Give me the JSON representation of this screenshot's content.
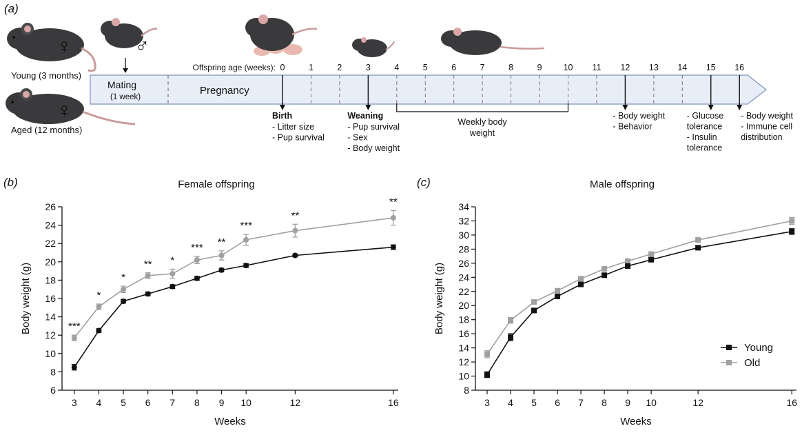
{
  "panel_a": {
    "label": "(a)",
    "young_label": "Young (3 months)",
    "aged_label": "Aged (12 months)",
    "female_symbol": "♀",
    "male_symbol": "♂",
    "age_axis_label": "Offspring age (weeks):",
    "mating_label": "Mating",
    "mating_sub": "(1 week)",
    "pregnancy_label": "Pregnancy",
    "week_ticks": [
      "0",
      "1",
      "2",
      "3",
      "4",
      "5",
      "6",
      "7",
      "8",
      "9",
      "10",
      "11",
      "12",
      "13",
      "14",
      "15",
      "16"
    ],
    "weekly_weight_label": [
      "Weekly body",
      "weight"
    ],
    "events": [
      {
        "week": "0",
        "title": "Birth",
        "items": [
          "- Litter size",
          "- Pup survival"
        ]
      },
      {
        "week": "3",
        "title": "Weaning",
        "items": [
          "- Pup survival",
          "- Sex",
          "- Body weight"
        ]
      },
      {
        "week": "12",
        "title": "",
        "items": [
          "- Body weight",
          "- Behavior"
        ]
      },
      {
        "week": "15",
        "title": "",
        "items": [
          "- Glucose",
          "  tolerance",
          "- Insulin",
          "  tolerance"
        ]
      },
      {
        "week": "16",
        "title": "",
        "items": [
          "- Body weight",
          "- Immune cell",
          "  distribution"
        ]
      }
    ],
    "colors": {
      "timeline_fill": "#e8eef8",
      "timeline_stroke": "#7f93b8",
      "female": "#e8525a",
      "male": "#1f6f8f",
      "mouse": "#3a3a3c"
    }
  },
  "chart_data": [
    {
      "panel_label": "(b)",
      "type": "line",
      "title": "Female offspring",
      "xlabel": "Weeks",
      "ylabel": "Body weight (g)",
      "ylim": [
        6,
        26
      ],
      "yticks": [
        6,
        8,
        10,
        12,
        14,
        16,
        18,
        20,
        22,
        24,
        26
      ],
      "xticks": [
        3,
        4,
        5,
        6,
        7,
        8,
        9,
        10,
        12,
        16
      ],
      "xlim": [
        2.5,
        16.2
      ],
      "series": [
        {
          "name": "Young",
          "color": "#111111",
          "marker": "circle",
          "x": [
            3,
            4,
            5,
            6,
            7,
            8,
            9,
            10,
            12,
            16
          ],
          "y": [
            8.5,
            12.5,
            15.7,
            16.5,
            17.3,
            18.2,
            19.1,
            19.6,
            20.7,
            21.6
          ],
          "err": [
            0.3,
            0.2,
            0.2,
            0.2,
            0.2,
            0.2,
            0.2,
            0.2,
            0.15,
            0.25
          ]
        },
        {
          "name": "Old",
          "color": "#a0a0a0",
          "marker": "circle",
          "x": [
            3,
            4,
            5,
            6,
            7,
            8,
            9,
            10,
            12,
            16
          ],
          "y": [
            11.7,
            15.1,
            17.0,
            18.5,
            18.7,
            20.2,
            20.7,
            22.4,
            23.4,
            24.8
          ],
          "err": [
            0.3,
            0.3,
            0.35,
            0.3,
            0.5,
            0.4,
            0.5,
            0.6,
            0.7,
            0.8
          ]
        }
      ],
      "annotations": [
        {
          "x": 3,
          "text": "***"
        },
        {
          "x": 4,
          "text": "*"
        },
        {
          "x": 5,
          "text": "*"
        },
        {
          "x": 6,
          "text": "**"
        },
        {
          "x": 7,
          "text": "*"
        },
        {
          "x": 8,
          "text": "***"
        },
        {
          "x": 9,
          "text": "**"
        },
        {
          "x": 10,
          "text": "***"
        },
        {
          "x": 12,
          "text": "**"
        },
        {
          "x": 16,
          "text": "**"
        }
      ]
    },
    {
      "panel_label": "(c)",
      "type": "line",
      "title": "Male offspring",
      "xlabel": "Weeks",
      "ylabel": "Body weight (g)",
      "ylim": [
        8,
        34
      ],
      "yticks": [
        8,
        10,
        12,
        14,
        16,
        18,
        20,
        22,
        24,
        26,
        28,
        30,
        32,
        34
      ],
      "xticks": [
        3,
        4,
        5,
        6,
        7,
        8,
        9,
        10,
        12,
        16
      ],
      "xlim": [
        2.5,
        16.2
      ],
      "legend": "right",
      "series": [
        {
          "name": "Young",
          "color": "#111111",
          "marker": "square",
          "x": [
            3,
            4,
            5,
            6,
            7,
            8,
            9,
            10,
            12,
            16
          ],
          "y": [
            10.2,
            15.5,
            19.3,
            21.3,
            23.0,
            24.3,
            25.6,
            26.5,
            28.2,
            30.5
          ],
          "err": [
            0.4,
            0.5,
            0.3,
            0.3,
            0.3,
            0.3,
            0.3,
            0.3,
            0.3,
            0.4
          ]
        },
        {
          "name": "Old",
          "color": "#a0a0a0",
          "marker": "square",
          "x": [
            3,
            4,
            5,
            6,
            7,
            8,
            9,
            10,
            12,
            16
          ],
          "y": [
            13.1,
            17.9,
            20.5,
            22.1,
            23.8,
            25.2,
            26.3,
            27.3,
            29.3,
            32.0
          ],
          "err": [
            0.5,
            0.4,
            0.3,
            0.3,
            0.3,
            0.3,
            0.3,
            0.3,
            0.3,
            0.5
          ]
        }
      ]
    }
  ]
}
